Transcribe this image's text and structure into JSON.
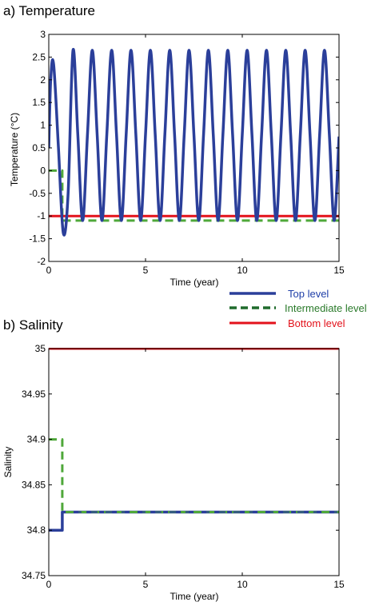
{
  "colors": {
    "top": "#2b3f9a",
    "intermediate": "#4fa83a",
    "intermediate_legend": "#1f6b2c",
    "bottom": "#e3121b",
    "legend_top_text": "#1f3fa8",
    "legend_intermediate_text": "#2a7a2a",
    "legend_bottom_text": "#e3121b"
  },
  "legend": {
    "top": "Top level",
    "intermediate": "Intermediate level",
    "bottom": "Bottom level"
  },
  "chart_data": [
    {
      "type": "line",
      "title": "a) Temperature",
      "xlabel": "Time (year)",
      "ylabel": "Temperature (°C)",
      "xlim": [
        0,
        15
      ],
      "ylim": [
        -2,
        3
      ],
      "xticks": [
        0,
        5,
        10,
        15
      ],
      "yticks": [
        -2,
        -1.5,
        -1,
        -0.5,
        0,
        0.5,
        1,
        1.5,
        2,
        2.5,
        3
      ],
      "xtick_labels": [
        "0",
        "5",
        "10",
        "15"
      ],
      "ytick_labels": [
        "-2",
        "-1.5",
        "-1",
        "-0.5",
        "0",
        "0.5",
        "1",
        "1.5",
        "2",
        "2.5",
        "3"
      ],
      "grid": false,
      "series": [
        {
          "name": "Top level",
          "style": "solid",
          "x": [
            0,
            0.1,
            0.25,
            0.5,
            0.75,
            1.0,
            1.25,
            1.5,
            1.75,
            2.0,
            2.25,
            2.5,
            2.75,
            3.0,
            3.25,
            3.5,
            3.75,
            4.0,
            4.25,
            4.5,
            4.75,
            5.0,
            5.25,
            5.5,
            5.75,
            6.0,
            6.25,
            6.5,
            6.75,
            7.0,
            7.25,
            7.5,
            7.75,
            8.0,
            8.25,
            8.5,
            8.75,
            9.0,
            9.25,
            9.5,
            9.75,
            10.0,
            10.25,
            10.5,
            10.75,
            11.0,
            11.25,
            11.5,
            11.75,
            12.0,
            12.25,
            12.5,
            12.75,
            13.0,
            13.25,
            13.5,
            13.75,
            14.0,
            14.25,
            14.5,
            14.75,
            15.0
          ],
          "y": [
            0.5,
            2.0,
            2.35,
            0.5,
            -1.38,
            -0.5,
            2.65,
            0.8,
            -1.1,
            0.8,
            2.65,
            0.8,
            -1.1,
            0.8,
            2.65,
            0.8,
            -1.1,
            0.8,
            2.65,
            0.8,
            -1.1,
            0.8,
            2.65,
            0.8,
            -1.1,
            0.8,
            2.65,
            0.8,
            -1.1,
            0.8,
            2.65,
            0.8,
            -1.1,
            0.8,
            2.65,
            0.8,
            -1.1,
            0.8,
            2.65,
            0.8,
            -1.1,
            0.8,
            2.65,
            0.8,
            -1.1,
            0.8,
            2.65,
            0.8,
            -1.1,
            0.8,
            2.65,
            0.8,
            -1.1,
            0.8,
            2.65,
            0.8,
            -1.1,
            0.8,
            2.65,
            0.8,
            -1.1,
            0.75
          ]
        },
        {
          "name": "Intermediate level",
          "style": "dashed",
          "x": [
            0,
            0.7,
            0.7,
            15
          ],
          "y": [
            0,
            0,
            -1.1,
            -1.1
          ]
        },
        {
          "name": "Bottom level",
          "style": "solid",
          "x": [
            0,
            15
          ],
          "y": [
            -1,
            -1
          ]
        }
      ]
    },
    {
      "type": "line",
      "title": "b) Salinity",
      "xlabel": "Time (year)",
      "ylabel": "Salinity",
      "xlim": [
        0,
        15
      ],
      "ylim": [
        34.75,
        35
      ],
      "xticks": [
        0,
        5,
        10,
        15
      ],
      "yticks": [
        34.75,
        34.8,
        34.85,
        34.9,
        34.95,
        35
      ],
      "xtick_labels": [
        "0",
        "5",
        "10",
        "15"
      ],
      "ytick_labels": [
        "34.75",
        "34.8",
        "34.85",
        "34.9",
        "34.95",
        "35"
      ],
      "grid": false,
      "series": [
        {
          "name": "Top level",
          "style": "solid",
          "x": [
            0,
            0.7,
            0.7,
            15
          ],
          "y": [
            34.8,
            34.8,
            34.82,
            34.82
          ]
        },
        {
          "name": "Intermediate level",
          "style": "dashed",
          "x": [
            0,
            0.7,
            0.7,
            15
          ],
          "y": [
            34.9,
            34.9,
            34.82,
            34.82
          ]
        },
        {
          "name": "Bottom level",
          "style": "solid",
          "x": [
            0,
            15
          ],
          "y": [
            35,
            35
          ]
        }
      ]
    }
  ]
}
